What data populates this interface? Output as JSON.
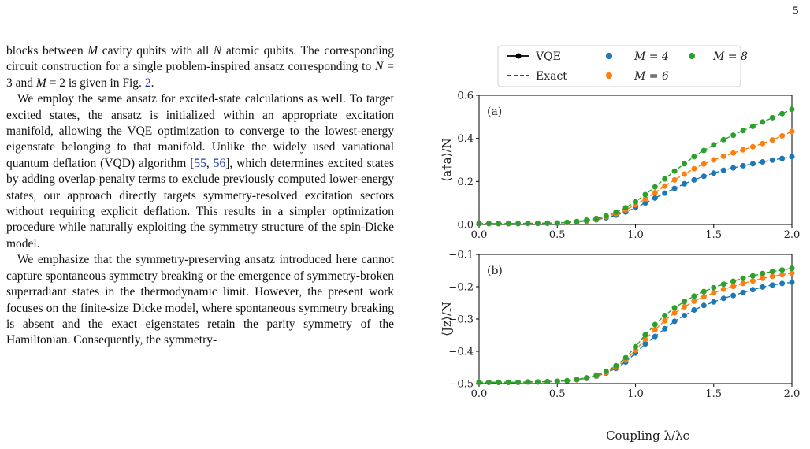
{
  "page": {
    "number": "5"
  },
  "body_text": {
    "p1": {
      "t1": "blocks between ",
      "m": "M",
      "t2": " cavity qubits with all ",
      "n": "N",
      "t3": " atomic qubits. The corresponding circuit construction for a single problem-inspired ansatz corresponding to ",
      "n2": "N",
      "t4": " = 3 and ",
      "m2": "M",
      "t5": " = 2 is given in Fig. ",
      "ref_fig": "2",
      "t6": "."
    },
    "p2": {
      "t1": "We employ the same ansatz for excited-state calculations as well. To target excited states, the ansatz is initialized within an appropriate excitation manifold, allowing the VQE optimization to converge to the lowest-energy eigenstate belonging to that manifold. Unlike the widely used variational quantum deflation (VQD) algorithm [",
      "ref1": "55",
      "sep": ", ",
      "ref2": "56",
      "t2": "], which determines excited states by adding overlap-penalty terms to exclude previously computed lower-energy states, our approach directly targets symmetry-resolved excitation sectors without requiring explicit deflation. This results in a simpler optimization procedure while naturally exploiting the symmetry structure of the spin-Dicke model."
    },
    "p3": {
      "t1": "We emphasize that the symmetry-preserving ansatz introduced here cannot capture spontaneous symmetry breaking or the emergence of symmetry-broken superradiant states in the thermodynamic limit. However, the present work focuses on the finite-size Dicke model, where spontaneous symmetry breaking is absent and the exact eigenstates retain the parity symmetry of the Hamiltonian. Consequently, the symmetry-"
    }
  },
  "chart_data": [
    {
      "type": "line",
      "panel_label": "(a)",
      "ylabel": "⟨a†a⟩/N",
      "xlim": [
        0.0,
        2.0
      ],
      "ylim": [
        0.0,
        0.6
      ],
      "xticks": [
        "0.0",
        "0.5",
        "1.0",
        "1.5",
        "2.0"
      ],
      "yticks": [
        "0.0",
        "0.2",
        "0.4",
        "0.6"
      ],
      "x": [
        0.0,
        0.0625,
        0.125,
        0.1875,
        0.25,
        0.3125,
        0.375,
        0.4375,
        0.5,
        0.5625,
        0.625,
        0.6875,
        0.75,
        0.8125,
        0.875,
        0.9375,
        1.0,
        1.0625,
        1.125,
        1.1875,
        1.25,
        1.3125,
        1.375,
        1.4375,
        1.5,
        1.5625,
        1.625,
        1.6875,
        1.75,
        1.8125,
        1.875,
        1.9375,
        2.0
      ],
      "series": [
        {
          "name": "M = 4",
          "color": "#1f77b4",
          "values": [
            0.004,
            0.004,
            0.004,
            0.004,
            0.004,
            0.005,
            0.005,
            0.006,
            0.007,
            0.009,
            0.012,
            0.016,
            0.022,
            0.031,
            0.043,
            0.058,
            0.078,
            0.1,
            0.123,
            0.146,
            0.168,
            0.189,
            0.207,
            0.224,
            0.239,
            0.252,
            0.263,
            0.273,
            0.282,
            0.291,
            0.299,
            0.307,
            0.315
          ]
        },
        {
          "name": "M = 6",
          "color": "#ff7f0e",
          "values": [
            0.004,
            0.004,
            0.004,
            0.004,
            0.004,
            0.005,
            0.005,
            0.006,
            0.007,
            0.009,
            0.013,
            0.018,
            0.025,
            0.036,
            0.05,
            0.068,
            0.092,
            0.119,
            0.148,
            0.179,
            0.207,
            0.234,
            0.259,
            0.281,
            0.3,
            0.317,
            0.332,
            0.347,
            0.361,
            0.376,
            0.393,
            0.412,
            0.432
          ]
        },
        {
          "name": "M = 8",
          "color": "#2ca02c",
          "values": [
            0.004,
            0.004,
            0.004,
            0.004,
            0.004,
            0.005,
            0.005,
            0.006,
            0.007,
            0.01,
            0.014,
            0.02,
            0.028,
            0.04,
            0.057,
            0.078,
            0.106,
            0.139,
            0.175,
            0.212,
            0.248,
            0.282,
            0.315,
            0.344,
            0.37,
            0.394,
            0.415,
            0.436,
            0.456,
            0.476,
            0.496,
            0.515,
            0.535
          ]
        }
      ]
    },
    {
      "type": "line",
      "panel_label": "(b)",
      "ylabel": "⟨Jz⟩/N",
      "xlabel": "Coupling λ/λc",
      "xlim": [
        0.0,
        2.0
      ],
      "ylim": [
        -0.5,
        -0.1
      ],
      "xticks": [
        "0.0",
        "0.5",
        "1.0",
        "1.5",
        "2.0"
      ],
      "yticks": [
        "−0.5",
        "−0.4",
        "−0.3",
        "−0.2",
        "−0.1"
      ],
      "x": [
        0.0,
        0.0625,
        0.125,
        0.1875,
        0.25,
        0.3125,
        0.375,
        0.4375,
        0.5,
        0.5625,
        0.625,
        0.6875,
        0.75,
        0.8125,
        0.875,
        0.9375,
        1.0,
        1.0625,
        1.125,
        1.1875,
        1.25,
        1.3125,
        1.375,
        1.4375,
        1.5,
        1.5625,
        1.625,
        1.6875,
        1.75,
        1.8125,
        1.875,
        1.9375,
        2.0
      ],
      "series": [
        {
          "name": "M = 4",
          "color": "#1f77b4",
          "values": [
            -0.496,
            -0.496,
            -0.496,
            -0.496,
            -0.496,
            -0.495,
            -0.495,
            -0.494,
            -0.493,
            -0.491,
            -0.488,
            -0.484,
            -0.477,
            -0.467,
            -0.453,
            -0.433,
            -0.405,
            -0.377,
            -0.354,
            -0.33,
            -0.307,
            -0.289,
            -0.272,
            -0.258,
            -0.247,
            -0.236,
            -0.227,
            -0.218,
            -0.209,
            -0.201,
            -0.195,
            -0.19,
            -0.186
          ]
        },
        {
          "name": "M = 6",
          "color": "#ff7f0e",
          "values": [
            -0.496,
            -0.496,
            -0.496,
            -0.496,
            -0.496,
            -0.495,
            -0.495,
            -0.494,
            -0.493,
            -0.491,
            -0.488,
            -0.483,
            -0.476,
            -0.465,
            -0.449,
            -0.427,
            -0.396,
            -0.363,
            -0.333,
            -0.305,
            -0.281,
            -0.262,
            -0.245,
            -0.231,
            -0.219,
            -0.208,
            -0.199,
            -0.19,
            -0.182,
            -0.174,
            -0.168,
            -0.163,
            -0.158
          ]
        },
        {
          "name": "M = 8",
          "color": "#2ca02c",
          "values": [
            -0.496,
            -0.496,
            -0.496,
            -0.496,
            -0.496,
            -0.495,
            -0.495,
            -0.494,
            -0.493,
            -0.491,
            -0.487,
            -0.482,
            -0.474,
            -0.462,
            -0.445,
            -0.42,
            -0.386,
            -0.349,
            -0.317,
            -0.289,
            -0.265,
            -0.246,
            -0.229,
            -0.215,
            -0.203,
            -0.192,
            -0.183,
            -0.174,
            -0.166,
            -0.159,
            -0.153,
            -0.148,
            -0.143
          ]
        }
      ]
    }
  ],
  "legend": {
    "vqe": "VQE",
    "exact": "Exact",
    "m4": "M = 4",
    "m6": "M = 6",
    "m8": "M = 8"
  }
}
